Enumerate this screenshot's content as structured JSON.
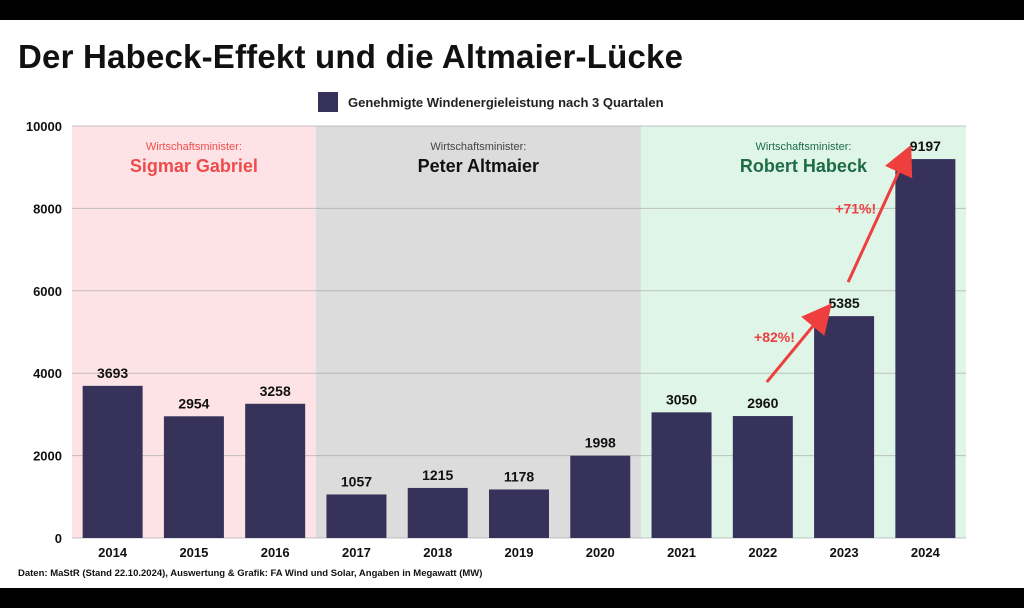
{
  "title": "Der Habeck-Effekt und die Altmaier-Lücke",
  "source": "Daten: MaStR (Stand 22.10.2024), Auswertung & Grafik: FA Wind und Solar, Angaben in Megawatt (MW)",
  "colors": {
    "bar": "#37325a",
    "gabriel_bg": "#fde3e5",
    "altmaier_bg": "#dcdcdc",
    "habeck_bg": "#dff5e8",
    "gabriel_name": "#ee4c4c",
    "habeck_name": "#1e6b45",
    "arrow": "#ee3e3e"
  },
  "chart_data": {
    "type": "bar",
    "categories": [
      "2014",
      "2015",
      "2016",
      "2017",
      "2018",
      "2019",
      "2020",
      "2021",
      "2022",
      "2023",
      "2024"
    ],
    "series": [
      {
        "name": "Genehmigte Windenergieleistung nach 3 Quartalen",
        "values": [
          3693,
          2954,
          3258,
          1057,
          1215,
          1178,
          1998,
          3050,
          2960,
          5385,
          9197
        ]
      }
    ],
    "ylim": [
      0,
      10000
    ],
    "yticks": [
      "0",
      "2000",
      "4000",
      "6000",
      "8000",
      "10000"
    ],
    "grid": true,
    "legend_position": "top-center",
    "periods": [
      {
        "role": "Wirtschaftsminister:",
        "name": "Sigmar Gabriel",
        "from": "2014",
        "to": "2016"
      },
      {
        "role": "Wirtschaftsminister:",
        "name": "Peter Altmaier",
        "from": "2017",
        "to": "2020"
      },
      {
        "role": "Wirtschaftsminister:",
        "name": "Robert Habeck",
        "from": "2021",
        "to": "2024"
      }
    ],
    "annotations": [
      {
        "text": "+82%!",
        "from": "2022",
        "to": "2023"
      },
      {
        "text": "+71%!",
        "from": "2023",
        "to": "2024"
      }
    ]
  }
}
